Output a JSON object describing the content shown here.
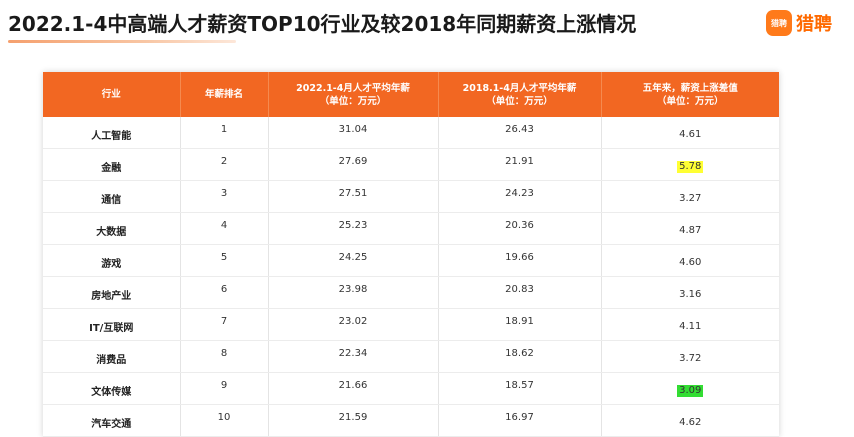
{
  "title": "2022.1-4中高端人才薪资TOP10行业及较2018年同期薪资上涨情况",
  "logo": {
    "badge": "猎聘",
    "text": "猎聘"
  },
  "table": {
    "headers": [
      [
        "行业"
      ],
      [
        "年薪排名"
      ],
      [
        "2022.1-4月人才平均年薪",
        "（单位：万元）"
      ],
      [
        "2018.1-4月人才平均年薪",
        "（单位：万元）"
      ],
      [
        "五年来，薪资上涨差值",
        "（单位：万元）"
      ]
    ],
    "rows": [
      {
        "industry": "人工智能",
        "rank": "1",
        "salary_2022": "31.04",
        "salary_2018": "26.43",
        "increase": "4.61",
        "highlight": ""
      },
      {
        "industry": "金融",
        "rank": "2",
        "salary_2022": "27.69",
        "salary_2018": "21.91",
        "increase": "5.78",
        "highlight": "#ffff33"
      },
      {
        "industry": "通信",
        "rank": "3",
        "salary_2022": "27.51",
        "salary_2018": "24.23",
        "increase": "3.27",
        "highlight": ""
      },
      {
        "industry": "大数据",
        "rank": "4",
        "salary_2022": "25.23",
        "salary_2018": "20.36",
        "increase": "4.87",
        "highlight": ""
      },
      {
        "industry": "游戏",
        "rank": "5",
        "salary_2022": "24.25",
        "salary_2018": "19.66",
        "increase": "4.60",
        "highlight": ""
      },
      {
        "industry": "房地产业",
        "rank": "6",
        "salary_2022": "23.98",
        "salary_2018": "20.83",
        "increase": "3.16",
        "highlight": ""
      },
      {
        "industry": "IT/互联网",
        "rank": "7",
        "salary_2022": "23.02",
        "salary_2018": "18.91",
        "increase": "4.11",
        "highlight": ""
      },
      {
        "industry": "消费品",
        "rank": "8",
        "salary_2022": "22.34",
        "salary_2018": "18.62",
        "increase": "3.72",
        "highlight": ""
      },
      {
        "industry": "文体传媒",
        "rank": "9",
        "salary_2022": "21.66",
        "salary_2018": "18.57",
        "increase": "3.09",
        "highlight": "#33dd33"
      },
      {
        "industry": "汽车交通",
        "rank": "10",
        "salary_2022": "21.59",
        "salary_2018": "16.97",
        "increase": "4.62",
        "highlight": ""
      }
    ]
  }
}
